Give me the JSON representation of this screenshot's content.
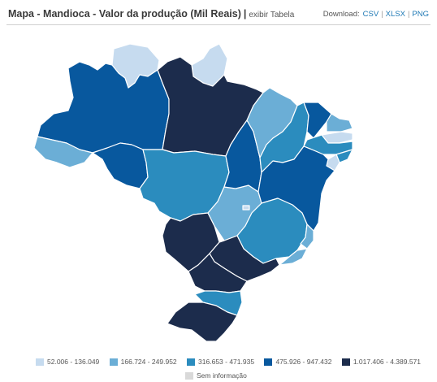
{
  "header": {
    "title": "Mapa - Mandioca - Valor da produção (Mil Reais)",
    "separator": "|",
    "exibir_label": "exibir Tabela"
  },
  "downloads": {
    "label": "Download:",
    "csv": "CSV",
    "xlsx": "XLSX",
    "png": "PNG"
  },
  "legend": {
    "classes": [
      {
        "label": "52.006 - 136.049",
        "color": "#c6dbef"
      },
      {
        "label": "166.724 - 249.952",
        "color": "#6baed6"
      },
      {
        "label": "316.653 - 471.935",
        "color": "#2b8cbe"
      },
      {
        "label": "475.926 - 947.432",
        "color": "#08589e"
      },
      {
        "label": "1.017.406 - 4.389.571",
        "color": "#1c2c4c"
      }
    ],
    "no_info": {
      "label": "Sem informação",
      "color": "#d9d9d9"
    }
  }
}
